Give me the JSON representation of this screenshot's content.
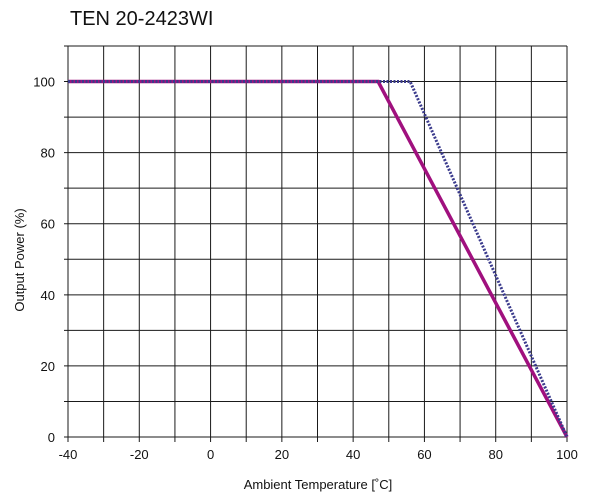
{
  "chart_data": {
    "type": "line",
    "title": "TEN 20-2423WI",
    "xlabel": "Ambient Temperature [˚C]",
    "ylabel": "Output Power (%)",
    "xlim": [
      -40,
      100
    ],
    "ylim": [
      0,
      100
    ],
    "x_ticks": [
      -40,
      -20,
      0,
      20,
      40,
      60,
      80,
      100
    ],
    "y_ticks": [
      0,
      20,
      40,
      60,
      80,
      100
    ],
    "x_grid_step": 10,
    "y_grid_step": 10,
    "grid": true,
    "legend": "none",
    "series": [
      {
        "style": "solid",
        "color": "#a0107e",
        "x": [
          -40,
          47,
          100
        ],
        "y": [
          100,
          100,
          0
        ]
      },
      {
        "style": "dotted",
        "color": "#3a3a8c",
        "x": [
          -40,
          56,
          100
        ],
        "y": [
          100,
          100,
          0
        ]
      }
    ]
  }
}
